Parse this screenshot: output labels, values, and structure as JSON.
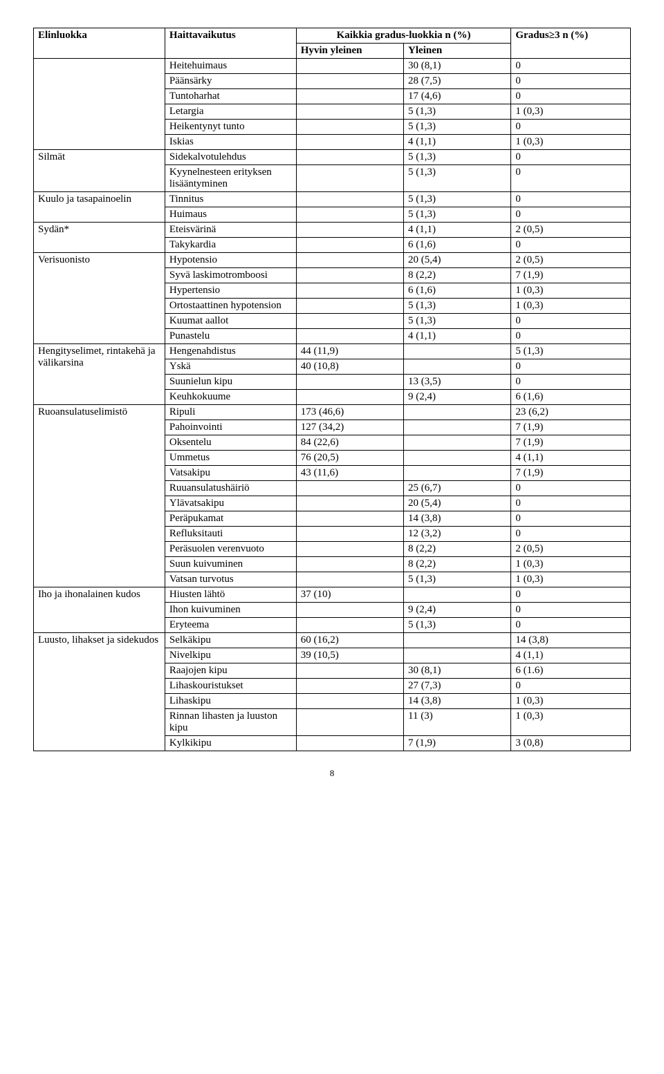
{
  "header": {
    "col1": "Elinluokka",
    "col2": "Haittavaikutus",
    "col34": "Kaikkia gradus-luokkia\nn (%)",
    "col3sub": "Hyvin yleinen",
    "col4sub": "Yleinen",
    "col5": "Gradus≥3\nn (%)"
  },
  "rows": [
    {
      "g": "",
      "n": "Heitehuimaus",
      "hy": "",
      "y": "30 (8,1)",
      "g3": "0"
    },
    {
      "g": "",
      "n": "Päänsärky",
      "hy": "",
      "y": "28 (7,5)",
      "g3": "0"
    },
    {
      "g": "",
      "n": "Tuntoharhat",
      "hy": "",
      "y": "17 (4,6)",
      "g3": "0"
    },
    {
      "g": "",
      "n": "Letargia",
      "hy": "",
      "y": "5 (1,3)",
      "g3": "1 (0,3)"
    },
    {
      "g": "",
      "n": "Heikentynyt tunto",
      "hy": "",
      "y": "5 (1,3)",
      "g3": "0"
    },
    {
      "g": "",
      "n": "Iskias",
      "hy": "",
      "y": "4 (1,1)",
      "g3": "1 (0,3)"
    },
    {
      "g": "Silmät",
      "gspan": 2,
      "n": "Sidekalvotulehdus",
      "hy": "",
      "y": "5 (1,3)",
      "g3": "0"
    },
    {
      "n": "Kyynelnesteen erityksen lisääntyminen",
      "hy": "",
      "y": "5 (1,3)",
      "g3": "0"
    },
    {
      "g": "Kuulo ja tasapainoelin",
      "gspan": 2,
      "n": "Tinnitus",
      "hy": "",
      "y": "5 (1,3)",
      "g3": "0"
    },
    {
      "n": "Huimaus",
      "hy": "",
      "y": "5 (1,3)",
      "g3": "0"
    },
    {
      "g": "Sydän*",
      "gspan": 2,
      "n": "Eteisvärinä",
      "hy": "",
      "y": "4 (1,1)",
      "g3": "2 (0,5)"
    },
    {
      "n": "Takykardia",
      "hy": "",
      "y": "6 (1,6)",
      "g3": "0"
    },
    {
      "g": "Verisuonisto",
      "gspan": 6,
      "n": "Hypotensio",
      "hy": "",
      "y": "20 (5,4)",
      "g3": "2 (0,5)"
    },
    {
      "n": "Syvä laskimotromboosi",
      "hy": "",
      "y": "8 (2,2)",
      "g3": "7 (1,9)"
    },
    {
      "n": "Hypertensio",
      "hy": "",
      "y": "6 (1,6)",
      "g3": "1 (0,3)"
    },
    {
      "n": "Ortostaattinen hypotension",
      "hy": "",
      "y": "5 (1,3)",
      "g3": "1 (0,3)"
    },
    {
      "n": "Kuumat aallot",
      "hy": "",
      "y": "5 (1,3)",
      "g3": "0"
    },
    {
      "n": "Punastelu",
      "hy": "",
      "y": "4 (1,1)",
      "g3": "0"
    },
    {
      "g": "Hengityselimet, rintakehä ja välikarsina",
      "gspan": 4,
      "n": "Hengenahdistus",
      "hy": "44 (11,9)",
      "y": "",
      "g3": "5 (1,3)"
    },
    {
      "n": "Yskä",
      "hy": "40 (10,8)",
      "y": "",
      "g3": "0"
    },
    {
      "n": "Suunielun kipu",
      "hy": "",
      "y": "13 (3,5)",
      "g3": "0"
    },
    {
      "n": "Keuhkokuume",
      "hy": "",
      "y": "9 (2,4)",
      "g3": "6 (1,6)"
    },
    {
      "g": "Ruoansulatuselimistö",
      "gspan": 12,
      "n": "Ripuli",
      "hy": "173 (46,6)",
      "y": "",
      "g3": "23 (6,2)"
    },
    {
      "n": "Pahoinvointi",
      "hy": "127 (34,2)",
      "y": "",
      "g3": "7 (1,9)"
    },
    {
      "n": "Oksentelu",
      "hy": "84 (22,6)",
      "y": "",
      "g3": "7 (1,9)"
    },
    {
      "n": "Ummetus",
      "hy": "76 (20,5)",
      "y": "",
      "g3": "4 (1,1)"
    },
    {
      "n": "Vatsakipu",
      "hy": "43 (11,6)",
      "y": "",
      "g3": "7 (1,9)"
    },
    {
      "n": "Ruuansulatushäiriö",
      "hy": "",
      "y": "25 (6,7)",
      "g3": "0"
    },
    {
      "n": "Ylävatsakipu",
      "hy": "",
      "y": "20 (5,4)",
      "g3": "0"
    },
    {
      "n": "Peräpukamat",
      "hy": "",
      "y": "14 (3,8)",
      "g3": "0"
    },
    {
      "n": "Refluksitauti",
      "hy": "",
      "y": "12 (3,2)",
      "g3": "0"
    },
    {
      "n": "Peräsuolen verenvuoto",
      "hy": "",
      "y": "8 (2,2)",
      "g3": "2 (0,5)"
    },
    {
      "n": "Suun kuivuminen",
      "hy": "",
      "y": "8 (2,2)",
      "g3": "1 (0,3)"
    },
    {
      "n": "Vatsan turvotus",
      "hy": "",
      "y": "5 (1,3)",
      "g3": "1 (0,3)"
    },
    {
      "g": "Iho ja ihonalainen kudos",
      "gspan": 3,
      "n": "Hiusten lähtö",
      "hy": "37 (10)",
      "y": "",
      "g3": "0"
    },
    {
      "n": "Ihon kuivuminen",
      "hy": "",
      "y": "9 (2,4)",
      "g3": "0"
    },
    {
      "n": "Eryteema",
      "hy": "",
      "y": "5 (1,3)",
      "g3": "0"
    },
    {
      "g": "Luusto, lihakset ja sidekudos",
      "gspan": 7,
      "n": "Selkäkipu",
      "hy": "60 (16,2)",
      "y": "",
      "g3": "14 (3,8)"
    },
    {
      "n": "Nivelkipu",
      "hy": "39 (10,5)",
      "y": "",
      "g3": "4 (1,1)"
    },
    {
      "n": "Raajojen kipu",
      "hy": "",
      "y": "30 (8,1)",
      "g3": "6 (1.6)"
    },
    {
      "n": "Lihaskouristukset",
      "hy": "",
      "y": "27 (7,3)",
      "g3": "0"
    },
    {
      "n": "Lihaskipu",
      "hy": "",
      "y": "14 (3,8)",
      "g3": "1 (0,3)"
    },
    {
      "n": "Rinnan lihasten ja luuston kipu",
      "hy": "",
      "y": "11 (3)",
      "g3": "1 (0,3)"
    },
    {
      "n": "Kylkikipu",
      "hy": "",
      "y": "7 (1,9)",
      "g3": "3 (0,8)"
    }
  ],
  "blankGroupSpan": 6,
  "pageNumber": "8"
}
